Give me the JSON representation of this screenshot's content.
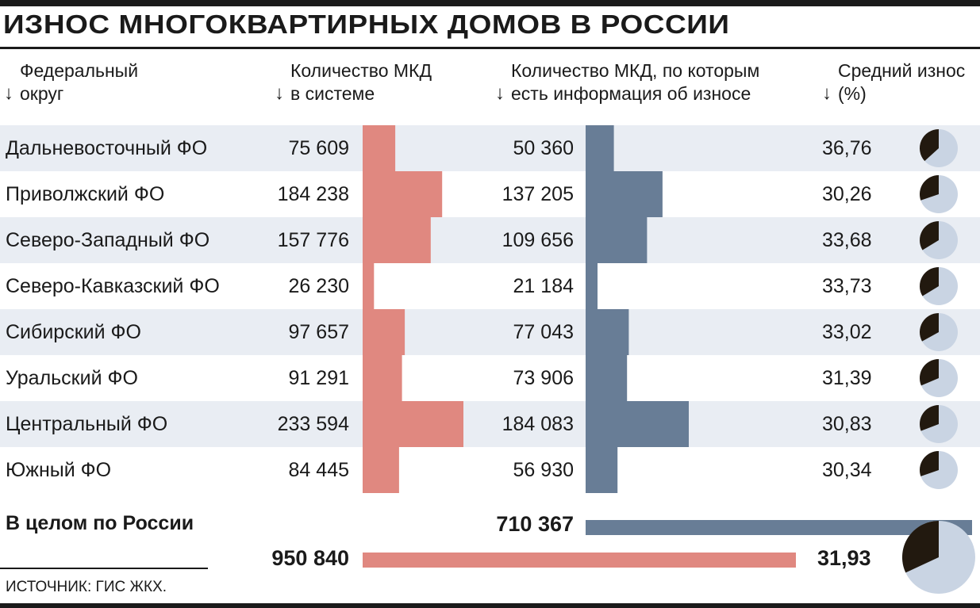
{
  "title": "ИЗНОС МНОГОКВАРТИРНЫХ ДОМОВ В РОССИИ",
  "headers": {
    "region": "Федеральный\nокруг",
    "total": "Количество МКД\nв системе",
    "with_info": "Количество МКД, по которым\nесть информация об износе",
    "wear": "Средний износ\n(%)",
    "arrow": "↓"
  },
  "rows": [
    {
      "region": "Дальневосточный ФО",
      "total_label": "75 609",
      "info_label": "50 360",
      "wear_label": "36,76"
    },
    {
      "region": "Приволжский ФО",
      "total_label": "184 238",
      "info_label": "137 205",
      "wear_label": "30,26"
    },
    {
      "region": "Северо-Западный ФО",
      "total_label": "157 776",
      "info_label": "109 656",
      "wear_label": "33,68"
    },
    {
      "region": "Северо-Кавказский ФО",
      "total_label": "26 230",
      "info_label": "21 184",
      "wear_label": "33,73"
    },
    {
      "region": "Сибирский ФО",
      "total_label": "97 657",
      "info_label": "77 043",
      "wear_label": "33,02"
    },
    {
      "region": "Уральский ФО",
      "total_label": "91 291",
      "info_label": "73 906",
      "wear_label": "31,39"
    },
    {
      "region": "Центральный ФО",
      "total_label": "233 594",
      "info_label": "184 083",
      "wear_label": "30,83"
    },
    {
      "region": "Южный ФО",
      "total_label": "84 445",
      "info_label": "56 930",
      "wear_label": "30,34"
    }
  ],
  "totals": {
    "label": "В целом по России",
    "total_label": "950 840",
    "info_label": "710 367",
    "wear_label": "31,93"
  },
  "source": "ИСТОЧНИК: ГИС ЖКХ.",
  "colors": {
    "total_bar": "#e08880",
    "info_bar": "#687d96",
    "pie_wear": "#22190f",
    "pie_rest": "#c9d4e3",
    "row_shade": "#e9edf3"
  },
  "chart_data": {
    "type": "bar",
    "categories": [
      "Дальневосточный ФО",
      "Приволжский ФО",
      "Северо-Западный ФО",
      "Северо-Кавказский ФО",
      "Сибирский ФО",
      "Уральский ФО",
      "Центральный ФО",
      "Южный ФО"
    ],
    "series": [
      {
        "name": "Количество МКД в системе",
        "values": [
          75609,
          184238,
          157776,
          26230,
          97657,
          91291,
          233594,
          84445
        ]
      },
      {
        "name": "Количество МКД, по которым есть информация об износе",
        "values": [
          50360,
          137205,
          109656,
          21184,
          77043,
          73906,
          184083,
          56930
        ]
      },
      {
        "name": "Средний износ (%)",
        "values": [
          36.76,
          30.26,
          33.68,
          33.73,
          33.02,
          31.39,
          30.83,
          30.34
        ]
      }
    ],
    "total": {
      "category": "В целом по России",
      "total": 950840,
      "with_info": 710367,
      "wear": 31.93
    },
    "title": "ИЗНОС МНОГОКВАРТИРНЫХ ДОМОВ В РОССИИ"
  }
}
